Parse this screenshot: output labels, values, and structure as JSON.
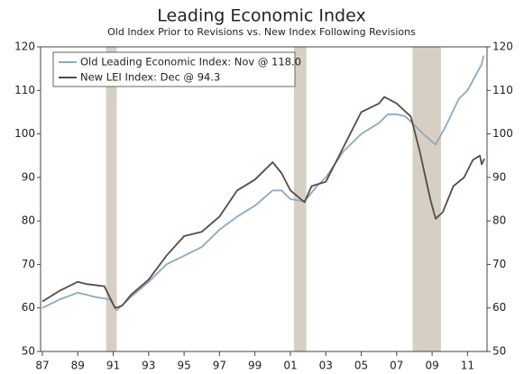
{
  "chart_data": {
    "type": "line",
    "title": "Leading Economic Index",
    "subtitle": "Old Index Prior to Revisions vs. New Index Following Revisions",
    "xlim": [
      1986.9,
      2012.1
    ],
    "ylim": [
      50,
      120
    ],
    "yticks": [
      50,
      60,
      70,
      80,
      90,
      100,
      110,
      120
    ],
    "xticks": [
      {
        "value": 1987,
        "label": "87"
      },
      {
        "value": 1989,
        "label": "89"
      },
      {
        "value": 1991,
        "label": "91"
      },
      {
        "value": 1993,
        "label": "93"
      },
      {
        "value": 1995,
        "label": "95"
      },
      {
        "value": 1997,
        "label": "97"
      },
      {
        "value": 1999,
        "label": "99"
      },
      {
        "value": 2001,
        "label": "01"
      },
      {
        "value": 2003,
        "label": "03"
      },
      {
        "value": 2005,
        "label": "05"
      },
      {
        "value": 2007,
        "label": "07"
      },
      {
        "value": 2009,
        "label": "09"
      },
      {
        "value": 2011,
        "label": "11"
      }
    ],
    "shaded_periods": [
      [
        1990.6,
        1991.2
      ],
      [
        2001.2,
        2001.9
      ],
      [
        2007.9,
        2009.5
      ]
    ],
    "shade_color": "#d6d0c4",
    "legend": "upper left",
    "series": [
      {
        "name": "Old Leading Economic Index: Nov @ 118.0",
        "color": "#8fa9bd",
        "x": [
          1987,
          1988,
          1989,
          1990,
          1990.8,
          1991.2,
          1992,
          1993,
          1994,
          1995,
          1996,
          1997,
          1998,
          1999,
          2000,
          2000.5,
          2001,
          2001.8,
          2002.5,
          2003,
          2004,
          2005,
          2006,
          2006.5,
          2007,
          2007.5,
          2008,
          2008.5,
          2009.2,
          2009.8,
          2010.5,
          2011,
          2011.8,
          2011.9
        ],
        "values": [
          60,
          62,
          63.5,
          62.5,
          62,
          59.5,
          62.5,
          66,
          70,
          72,
          74,
          78,
          81,
          83.5,
          87,
          87,
          85,
          84.5,
          88,
          90,
          96,
          100,
          102.5,
          104.5,
          104.5,
          104,
          102,
          100,
          97.5,
          102,
          108,
          110,
          116,
          118
        ]
      },
      {
        "name": "New LEI Index: Dec @ 94.3",
        "color": "#5a4a42",
        "x": [
          1987,
          1988,
          1989,
          1989.5,
          1990.5,
          1991.1,
          1991.5,
          1992,
          1993,
          1994,
          1995,
          1996,
          1997,
          1998,
          1999,
          2000,
          2000.5,
          2001,
          2001.8,
          2002.2,
          2003,
          2004,
          2005,
          2006,
          2006.3,
          2007,
          2007.8,
          2008.3,
          2008.9,
          2009.2,
          2009.6,
          2010.2,
          2010.8,
          2011.3,
          2011.7,
          2011.8,
          2011.95
        ],
        "values": [
          61.5,
          64,
          66,
          65.5,
          65,
          60,
          60.5,
          63,
          66.5,
          72,
          76.5,
          77.5,
          81,
          87,
          89.5,
          93.5,
          91,
          87,
          84.3,
          88,
          89,
          97,
          105,
          107,
          108.5,
          107,
          104,
          96,
          85,
          80.5,
          82,
          88,
          90,
          94,
          95,
          93,
          94.3
        ]
      }
    ]
  }
}
